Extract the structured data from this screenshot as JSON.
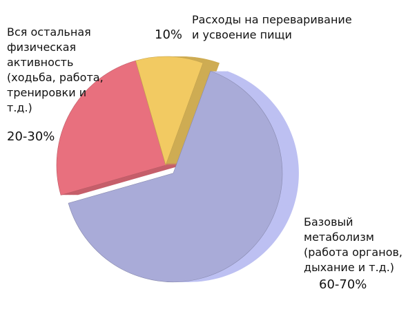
{
  "chart_data": {
    "type": "pie",
    "categories": [
      "Базовый метаболизм (работа органов, дыхание и т.д.)",
      "Вся остальная физическая активность (ходьба, работа, тренировки и т.д.)",
      "Расходы на переваривание и усвоение пищи"
    ],
    "values": [
      65,
      25,
      10
    ],
    "value_labels": [
      "60-70%",
      "20-30%",
      "10%"
    ],
    "colors": [
      "#a9abd8",
      "#e8707e",
      "#f2ca62"
    ]
  }
}
